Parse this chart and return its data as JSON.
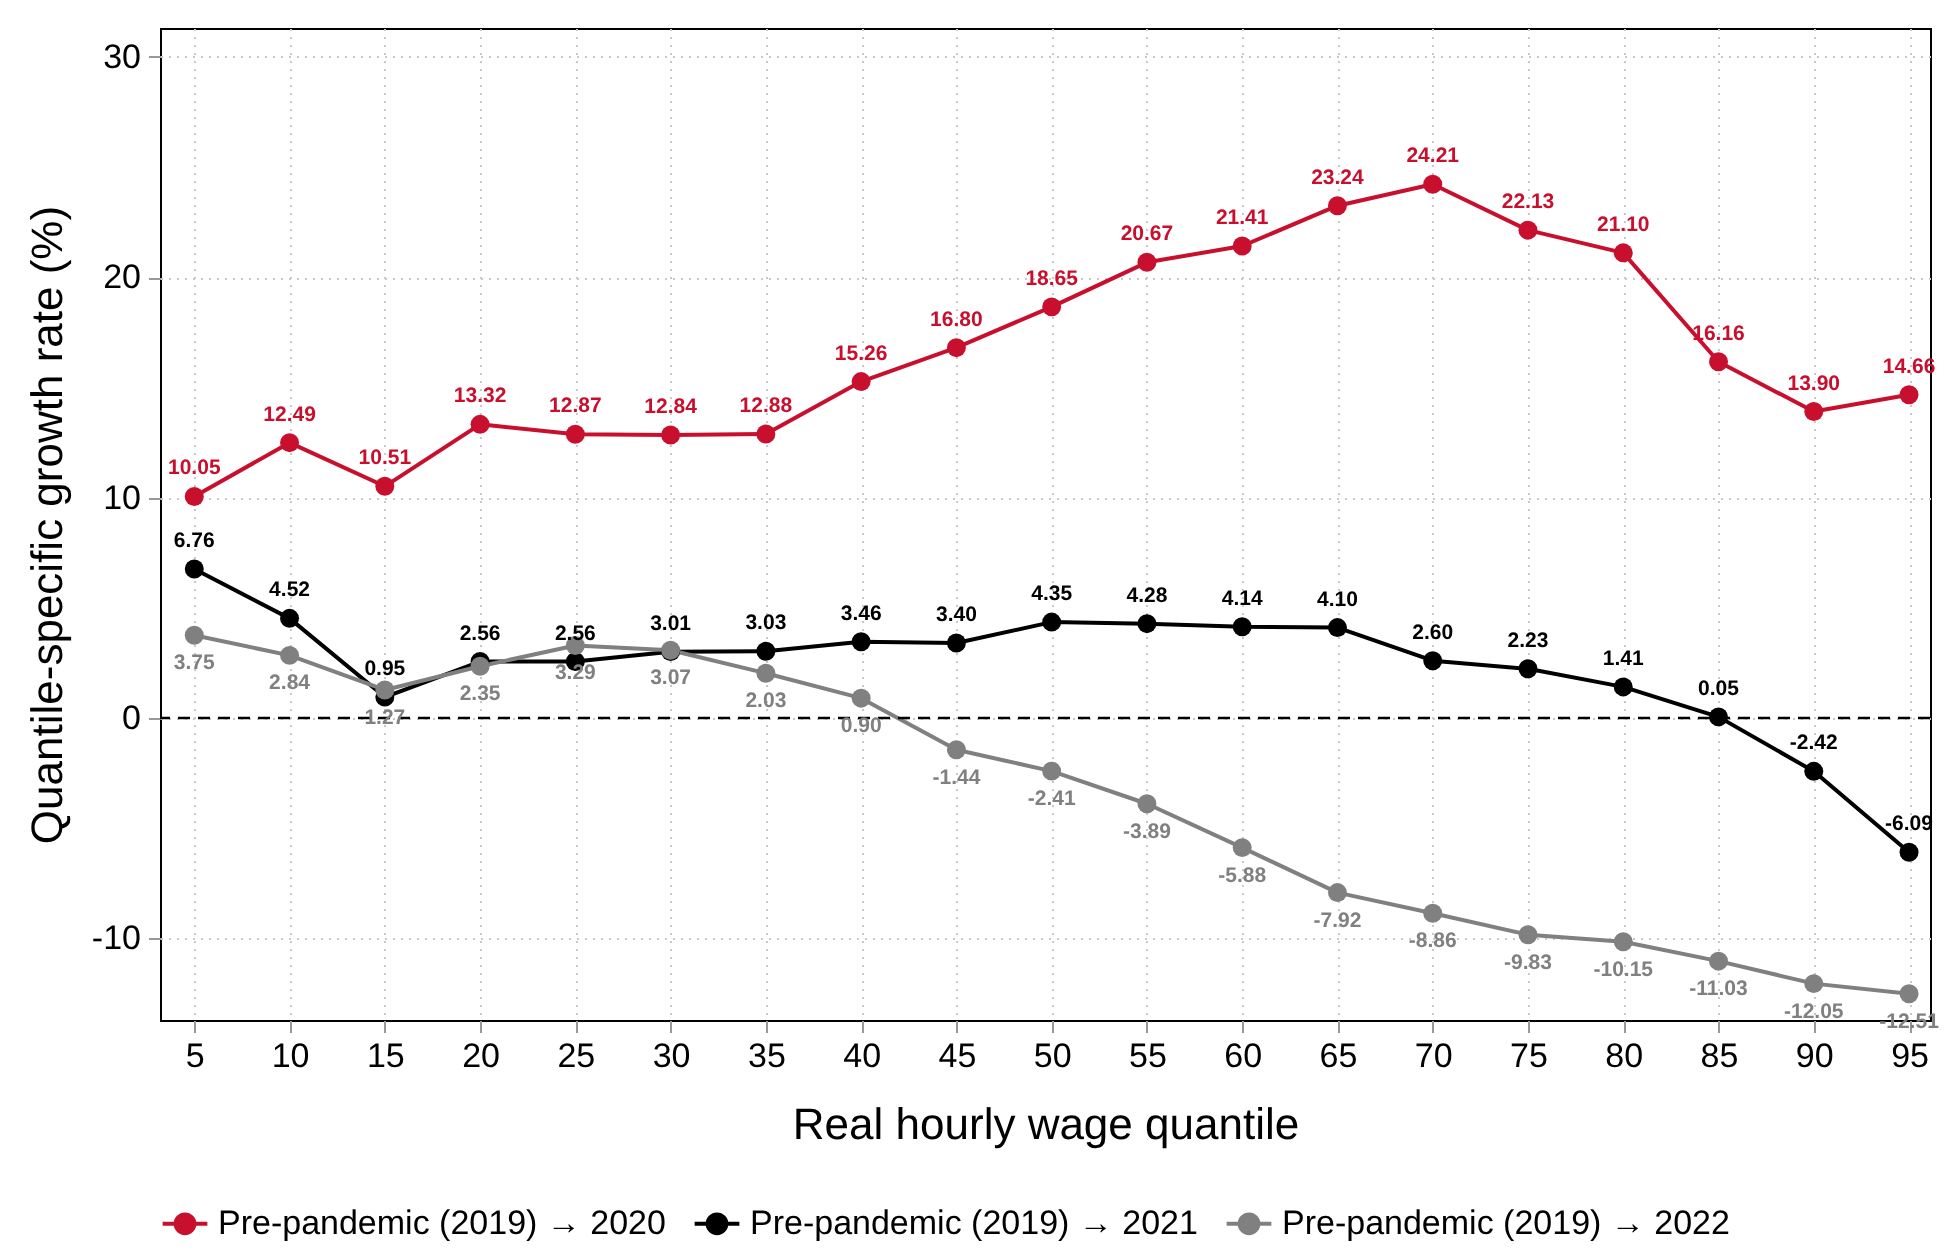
{
  "chart_data": {
    "type": "line",
    "xlabel": "Real hourly wage quantile",
    "ylabel": "Quantile-specific growth rate (%)",
    "x": [
      5,
      10,
      15,
      20,
      25,
      30,
      35,
      40,
      45,
      50,
      55,
      60,
      65,
      70,
      75,
      80,
      85,
      90,
      95
    ],
    "series": [
      {
        "name": "Pre-pandemic (2019) → 2020",
        "color": "#c8102e",
        "values": [
          10.05,
          12.49,
          10.51,
          13.32,
          12.87,
          12.84,
          12.88,
          15.26,
          16.8,
          18.65,
          20.67,
          21.41,
          23.24,
          24.21,
          22.13,
          21.1,
          16.16,
          13.9,
          14.66
        ],
        "value_labels": [
          "10.05",
          "12.49",
          "10.51",
          "13.32",
          "12.87",
          "12.84",
          "12.88",
          "15.26",
          "16.80",
          "18.65",
          "20.67",
          "21.41",
          "23.24",
          "24.21",
          "22.13",
          "21.10",
          "16.16",
          "13.90",
          "14.66"
        ]
      },
      {
        "name": "Pre-pandemic (2019) → 2021",
        "color": "#000000",
        "values": [
          6.76,
          4.52,
          0.95,
          2.56,
          2.56,
          3.01,
          3.03,
          3.46,
          3.4,
          4.35,
          4.28,
          4.14,
          4.1,
          2.6,
          2.23,
          1.41,
          0.05,
          -2.42,
          -6.09
        ],
        "value_labels": [
          "6.76",
          "4.52",
          "0.95",
          "2.56",
          "2.56",
          "3.01",
          "3.03",
          "3.46",
          "3.40",
          "4.35",
          "4.28",
          "4.14",
          "4.10",
          "2.60",
          "2.23",
          "1.41",
          "0.05",
          "-2.42",
          "-6.09"
        ]
      },
      {
        "name": "Pre-pandemic (2019) → 2022",
        "color": "#808080",
        "values": [
          3.75,
          2.84,
          1.27,
          2.35,
          3.29,
          3.07,
          2.03,
          0.9,
          -1.44,
          -2.41,
          -3.89,
          -5.88,
          -7.92,
          -8.86,
          -9.83,
          -10.15,
          -11.03,
          -12.05,
          -12.51
        ],
        "value_labels": [
          "3.75",
          "2.84",
          "1.27",
          "2.35",
          "3.29",
          "3.07",
          "2.03",
          "0.90",
          "-1.44",
          "-2.41",
          "-3.89",
          "-5.88",
          "-7.92",
          "-8.86",
          "-9.83",
          "-10.15",
          "-11.03",
          "-12.05",
          "-12.51"
        ]
      }
    ],
    "xlim": [
      3.2,
      96.1
    ],
    "xticks": [
      5,
      10,
      15,
      20,
      25,
      30,
      35,
      40,
      45,
      50,
      55,
      60,
      65,
      70,
      75,
      80,
      85,
      90,
      95
    ],
    "ylim": [
      -13.7,
      31.3
    ],
    "yticks": [
      -10,
      0,
      10,
      20,
      30
    ],
    "ref_lines": [
      {
        "axis": "y",
        "value": 0,
        "color": "#000000",
        "line_style": "dashed"
      }
    ],
    "grid": true,
    "legend": "bottom",
    "marker": "circle",
    "line_style": "solid"
  }
}
